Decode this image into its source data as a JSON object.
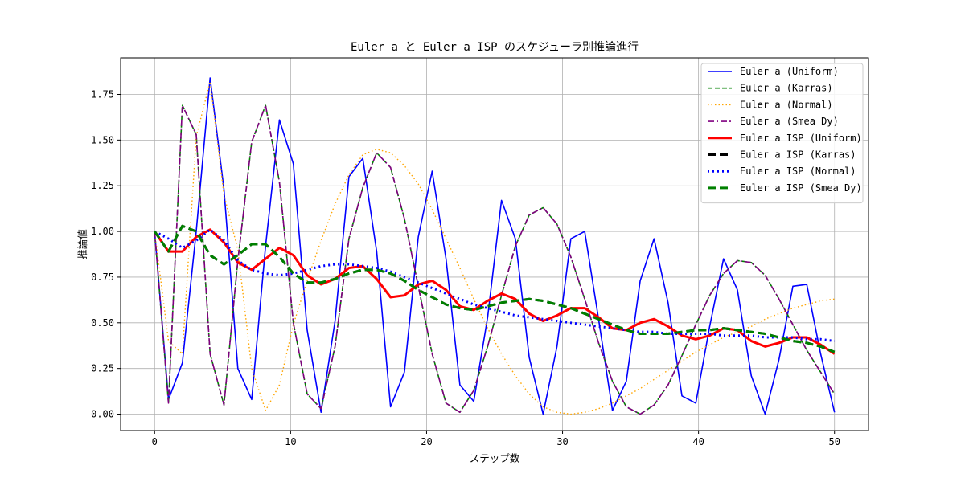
{
  "chart_data": {
    "type": "line",
    "title": "Euler a と Euler a ISP のスケジューラ別推論進行",
    "xlabel": "ステップ数",
    "ylabel": "推論値",
    "xlim": [
      -2.5,
      52.5
    ],
    "ylim": [
      -0.09,
      1.95
    ],
    "xticks": [
      0,
      10,
      20,
      30,
      40,
      50
    ],
    "yticks": [
      0.0,
      0.25,
      0.5,
      0.75,
      1.0,
      1.25,
      1.5,
      1.75
    ],
    "ytick_labels": [
      "0.00",
      "0.25",
      "0.50",
      "0.75",
      "1.00",
      "1.25",
      "1.50",
      "1.75"
    ],
    "grid": true,
    "legend_position": "top-right",
    "series": [
      {
        "name": "Euler a (Uniform)",
        "color": "#0000ff",
        "width": 1.6,
        "dash": "",
        "x": [
          0,
          1.02,
          2.04,
          3.06,
          4.08,
          5.1,
          6.12,
          7.14,
          8.16,
          9.18,
          10.2,
          11.22,
          12.24,
          13.27,
          14.29,
          15.31,
          16.33,
          17.35,
          18.37,
          19.39,
          20.41,
          21.43,
          22.45,
          23.47,
          24.49,
          25.51,
          26.53,
          27.55,
          28.57,
          29.59,
          30.61,
          31.63,
          32.65,
          33.67,
          34.69,
          35.71,
          36.73,
          37.76,
          38.78,
          39.8,
          40.82,
          41.84,
          42.86,
          43.88,
          44.9,
          45.92,
          46.94,
          47.96,
          48.98,
          50
        ],
        "y": [
          1.0,
          0.08,
          0.28,
          1.0,
          1.84,
          1.23,
          0.25,
          0.08,
          0.92,
          1.61,
          1.37,
          0.46,
          0.01,
          0.51,
          1.3,
          1.4,
          0.89,
          0.04,
          0.23,
          0.97,
          1.33,
          0.85,
          0.16,
          0.07,
          0.53,
          1.17,
          0.96,
          0.31,
          0.0,
          0.37,
          0.96,
          1.0,
          0.52,
          0.02,
          0.18,
          0.73,
          0.96,
          0.61,
          0.1,
          0.06,
          0.48,
          0.85,
          0.68,
          0.21,
          0.0,
          0.3,
          0.7,
          0.71,
          0.33,
          0.01
        ]
      },
      {
        "name": "Euler a (Karras)",
        "color": "#008000",
        "width": 1.6,
        "dash": "6,3",
        "x": [
          0,
          1.02,
          2.04,
          3.06,
          4.08,
          5.1,
          6.12,
          7.14,
          8.16,
          9.18,
          10.2,
          11.22,
          12.24,
          13.27,
          14.29,
          15.31,
          16.33,
          17.35,
          18.37,
          19.39,
          20.41,
          21.43,
          22.45,
          23.47,
          24.49,
          25.51,
          26.53,
          27.55,
          28.57,
          29.59,
          30.61,
          31.63,
          32.65,
          33.67,
          34.69,
          35.71,
          36.73,
          37.76,
          38.78,
          39.8,
          40.82,
          41.84,
          42.86,
          43.88,
          44.9,
          45.92,
          46.94,
          47.96,
          48.98,
          50
        ],
        "y": [
          1.0,
          0.06,
          1.69,
          1.53,
          0.33,
          0.05,
          0.84,
          1.49,
          1.69,
          1.27,
          0.5,
          0.11,
          0.03,
          0.37,
          0.96,
          1.24,
          1.43,
          1.35,
          1.07,
          0.7,
          0.33,
          0.06,
          0.01,
          0.13,
          0.37,
          0.65,
          0.92,
          1.09,
          1.13,
          1.04,
          0.86,
          0.63,
          0.39,
          0.18,
          0.04,
          0.0,
          0.05,
          0.16,
          0.32,
          0.49,
          0.65,
          0.77,
          0.84,
          0.83,
          0.76,
          0.63,
          0.49,
          0.35,
          0.23,
          0.11
        ]
      },
      {
        "name": "Euler a (Normal)",
        "color": "#ffa500",
        "width": 1.4,
        "dash": "1.5,3",
        "x": [
          0,
          1.02,
          2.04,
          3.06,
          4.08,
          5.1,
          6.12,
          7.14,
          8.16,
          9.18,
          10.2,
          11.22,
          12.24,
          13.27,
          14.29,
          15.31,
          16.33,
          17.35,
          18.37,
          19.39,
          20.41,
          21.43,
          22.45,
          23.47,
          24.49,
          25.51,
          26.53,
          27.55,
          28.57,
          29.59,
          30.61,
          31.63,
          32.65,
          33.67,
          34.69,
          35.71,
          36.73,
          37.76,
          38.78,
          39.8,
          40.82,
          41.84,
          42.86,
          43.88,
          44.9,
          45.92,
          46.94,
          47.96,
          48.98,
          50
        ],
        "y": [
          1.0,
          0.4,
          0.33,
          1.52,
          1.82,
          1.2,
          0.9,
          0.25,
          0.02,
          0.16,
          0.49,
          0.73,
          0.95,
          1.15,
          1.31,
          1.42,
          1.45,
          1.43,
          1.36,
          1.26,
          1.12,
          0.96,
          0.8,
          0.63,
          0.47,
          0.33,
          0.21,
          0.11,
          0.04,
          0.01,
          0.0,
          0.01,
          0.03,
          0.06,
          0.1,
          0.14,
          0.19,
          0.24,
          0.29,
          0.34,
          0.38,
          0.42,
          0.45,
          0.48,
          0.52,
          0.55,
          0.58,
          0.6,
          0.62,
          0.63
        ]
      },
      {
        "name": "Euler a (Smea Dy)",
        "color": "#800080",
        "width": 1.6,
        "dash": "8,3,2,3",
        "x": [
          0,
          1.02,
          2.04,
          3.06,
          4.08,
          5.1,
          6.12,
          7.14,
          8.16,
          9.18,
          10.2,
          11.22,
          12.24,
          13.27,
          14.29,
          15.31,
          16.33,
          17.35,
          18.37,
          19.39,
          20.41,
          21.43,
          22.45,
          23.47,
          24.49,
          25.51,
          26.53,
          27.55,
          28.57,
          29.59,
          30.61,
          31.63,
          32.65,
          33.67,
          34.69,
          35.71,
          36.73,
          37.76,
          38.78,
          39.8,
          40.82,
          41.84,
          42.86,
          43.88,
          44.9,
          45.92,
          46.94,
          47.96,
          48.98,
          50
        ],
        "y": [
          1.0,
          0.06,
          1.69,
          1.53,
          0.33,
          0.05,
          0.84,
          1.49,
          1.69,
          1.27,
          0.5,
          0.11,
          0.03,
          0.37,
          0.96,
          1.24,
          1.43,
          1.35,
          1.07,
          0.7,
          0.33,
          0.06,
          0.01,
          0.13,
          0.37,
          0.65,
          0.92,
          1.09,
          1.13,
          1.04,
          0.86,
          0.63,
          0.39,
          0.18,
          0.04,
          0.0,
          0.05,
          0.16,
          0.32,
          0.49,
          0.65,
          0.77,
          0.84,
          0.83,
          0.76,
          0.63,
          0.49,
          0.35,
          0.23,
          0.11
        ]
      },
      {
        "name": "Euler a ISP (Uniform)",
        "color": "#ff0000",
        "width": 3,
        "dash": "",
        "x": [
          0,
          1.02,
          2.04,
          3.06,
          4.08,
          5.1,
          6.12,
          7.14,
          8.16,
          9.18,
          10.2,
          11.22,
          12.24,
          13.27,
          14.29,
          15.31,
          16.33,
          17.35,
          18.37,
          19.39,
          20.41,
          21.43,
          22.45,
          23.47,
          24.49,
          25.51,
          26.53,
          27.55,
          28.57,
          29.59,
          30.61,
          31.63,
          32.65,
          33.67,
          34.69,
          35.71,
          36.73,
          37.76,
          38.78,
          39.8,
          40.82,
          41.84,
          42.86,
          43.88,
          44.9,
          45.92,
          46.94,
          47.96,
          48.98,
          50
        ],
        "y": [
          1.0,
          0.89,
          0.89,
          0.97,
          1.01,
          0.94,
          0.83,
          0.79,
          0.85,
          0.91,
          0.87,
          0.76,
          0.71,
          0.74,
          0.8,
          0.81,
          0.74,
          0.64,
          0.65,
          0.71,
          0.73,
          0.68,
          0.59,
          0.57,
          0.62,
          0.66,
          0.63,
          0.55,
          0.51,
          0.54,
          0.58,
          0.58,
          0.53,
          0.47,
          0.46,
          0.5,
          0.52,
          0.48,
          0.43,
          0.41,
          0.43,
          0.47,
          0.46,
          0.4,
          0.37,
          0.39,
          0.42,
          0.42,
          0.38,
          0.33
        ]
      },
      {
        "name": "Euler a ISP (Karras)",
        "color": "#000000",
        "width": 3,
        "dash": "10,5",
        "x": [
          0,
          1.02,
          2.04,
          3.06,
          4.08,
          5.1,
          6.12,
          7.14,
          8.16,
          9.18,
          10.2,
          11.22,
          12.24,
          13.27,
          14.29,
          15.31,
          16.33,
          17.35,
          18.37,
          19.39,
          20.41,
          21.43,
          22.45,
          23.47,
          24.49,
          25.51,
          26.53,
          27.55,
          28.57,
          29.59,
          30.61,
          31.63,
          32.65,
          33.67,
          34.69,
          35.71,
          36.73,
          37.76,
          38.78,
          39.8,
          40.82,
          41.84,
          42.86,
          43.88,
          44.9,
          45.92,
          46.94,
          47.96,
          48.98,
          50
        ],
        "y": [
          1.0,
          0.89,
          1.03,
          1.0,
          0.87,
          0.82,
          0.87,
          0.93,
          0.93,
          0.86,
          0.77,
          0.72,
          0.72,
          0.74,
          0.77,
          0.79,
          0.79,
          0.77,
          0.73,
          0.68,
          0.64,
          0.6,
          0.58,
          0.57,
          0.59,
          0.61,
          0.62,
          0.63,
          0.62,
          0.6,
          0.58,
          0.55,
          0.52,
          0.49,
          0.46,
          0.44,
          0.44,
          0.44,
          0.45,
          0.46,
          0.46,
          0.47,
          0.46,
          0.45,
          0.44,
          0.42,
          0.4,
          0.39,
          0.37,
          0.34
        ]
      },
      {
        "name": "Euler a ISP (Normal)",
        "color": "#0000ff",
        "width": 3,
        "dash": "2,4",
        "x": [
          0,
          1.02,
          2.04,
          3.06,
          4.08,
          5.1,
          6.12,
          7.14,
          8.16,
          9.18,
          10.2,
          11.22,
          12.24,
          13.27,
          14.29,
          15.31,
          16.33,
          17.35,
          18.37,
          19.39,
          20.41,
          21.43,
          22.45,
          23.47,
          24.49,
          25.51,
          26.53,
          27.55,
          28.57,
          29.59,
          30.61,
          31.63,
          32.65,
          33.67,
          34.69,
          35.71,
          36.73,
          37.76,
          38.78,
          39.8,
          40.82,
          41.84,
          42.86,
          43.88,
          44.9,
          45.92,
          46.94,
          47.96,
          48.98,
          50
        ],
        "y": [
          1.0,
          0.96,
          0.91,
          0.95,
          1.01,
          0.95,
          0.84,
          0.79,
          0.77,
          0.76,
          0.77,
          0.79,
          0.81,
          0.82,
          0.82,
          0.81,
          0.8,
          0.78,
          0.75,
          0.72,
          0.69,
          0.66,
          0.63,
          0.6,
          0.58,
          0.56,
          0.54,
          0.53,
          0.52,
          0.51,
          0.5,
          0.49,
          0.48,
          0.47,
          0.46,
          0.45,
          0.45,
          0.44,
          0.44,
          0.44,
          0.44,
          0.43,
          0.43,
          0.43,
          0.42,
          0.42,
          0.42,
          0.41,
          0.41,
          0.4
        ]
      },
      {
        "name": "Euler a ISP (Smea Dy)",
        "color": "#008000",
        "width": 3,
        "dash": "10,5",
        "x": [
          0,
          1.02,
          2.04,
          3.06,
          4.08,
          5.1,
          6.12,
          7.14,
          8.16,
          9.18,
          10.2,
          11.22,
          12.24,
          13.27,
          14.29,
          15.31,
          16.33,
          17.35,
          18.37,
          19.39,
          20.41,
          21.43,
          22.45,
          23.47,
          24.49,
          25.51,
          26.53,
          27.55,
          28.57,
          29.59,
          30.61,
          31.63,
          32.65,
          33.67,
          34.69,
          35.71,
          36.73,
          37.76,
          38.78,
          39.8,
          40.82,
          41.84,
          42.86,
          43.88,
          44.9,
          45.92,
          46.94,
          47.96,
          48.98,
          50
        ],
        "y": [
          1.0,
          0.89,
          1.03,
          1.0,
          0.87,
          0.82,
          0.87,
          0.93,
          0.93,
          0.86,
          0.77,
          0.72,
          0.72,
          0.74,
          0.77,
          0.79,
          0.79,
          0.77,
          0.73,
          0.68,
          0.64,
          0.6,
          0.58,
          0.57,
          0.59,
          0.61,
          0.62,
          0.63,
          0.62,
          0.6,
          0.58,
          0.55,
          0.52,
          0.49,
          0.46,
          0.44,
          0.44,
          0.44,
          0.45,
          0.46,
          0.46,
          0.47,
          0.46,
          0.45,
          0.44,
          0.42,
          0.4,
          0.39,
          0.37,
          0.34
        ]
      }
    ]
  }
}
